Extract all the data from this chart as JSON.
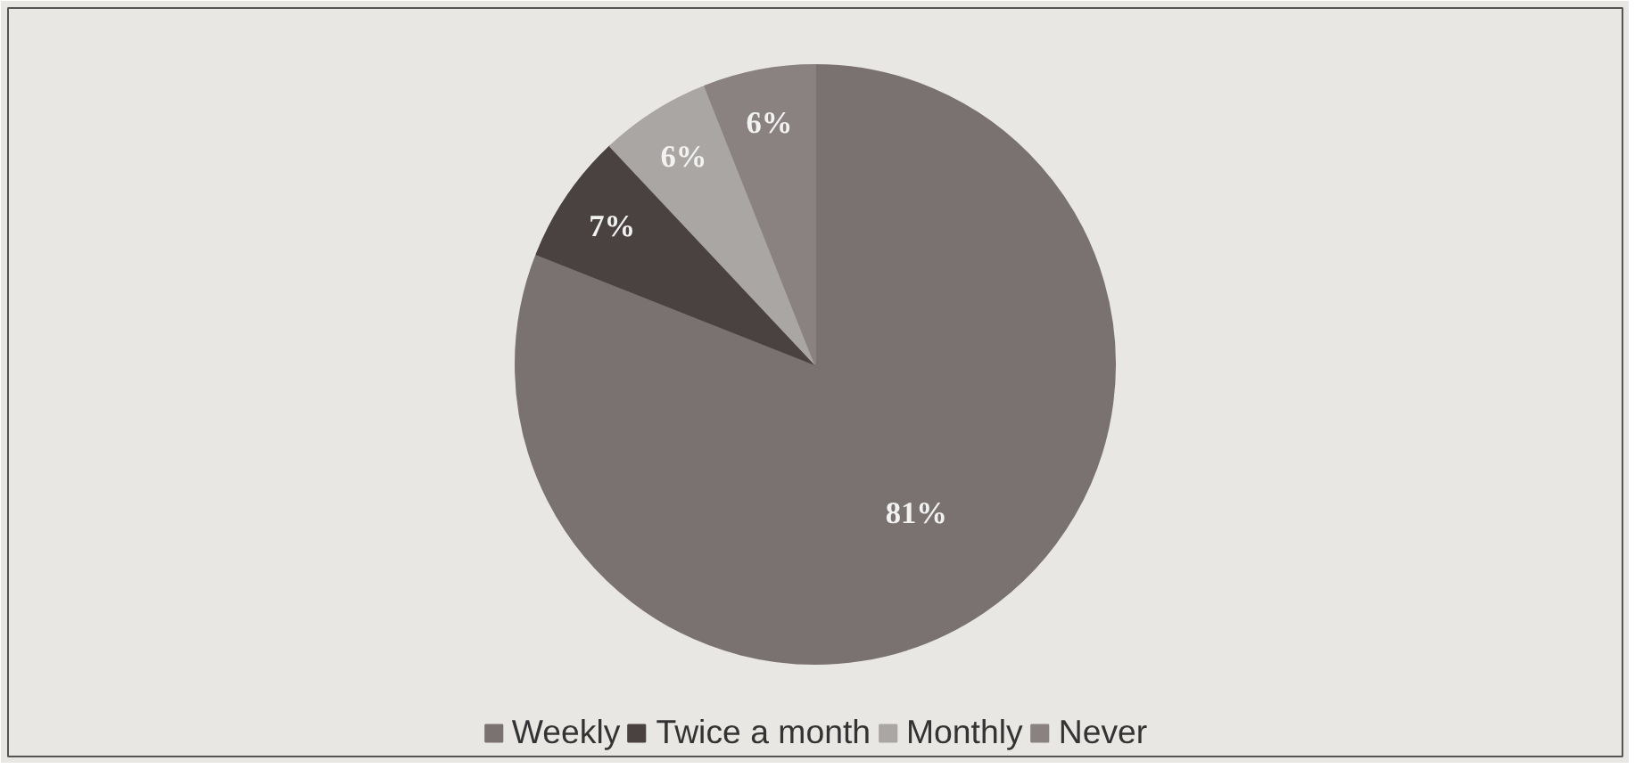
{
  "chart_data": {
    "type": "pie",
    "categories": [
      "Weekly",
      "Twice a month",
      "Monthly",
      "Never"
    ],
    "values": [
      81,
      7,
      6,
      6
    ],
    "colors": [
      "#7a7270",
      "#4a4240",
      "#aaa6a3",
      "#8a8280"
    ],
    "value_labels": [
      "81%",
      "7%",
      "6%",
      "6%"
    ],
    "legend": "bottom"
  }
}
